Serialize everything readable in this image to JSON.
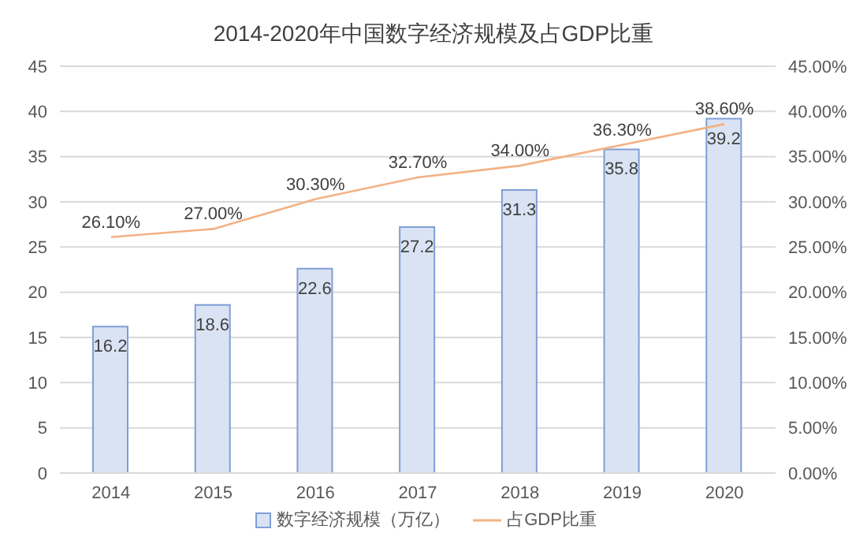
{
  "chart_data": {
    "type": "bar",
    "title": "2014-2020年中国数字经济规模及占GDP比重",
    "categories": [
      "2014",
      "2015",
      "2016",
      "2017",
      "2018",
      "2019",
      "2020"
    ],
    "series": [
      {
        "name": "数字经济规模（万亿）",
        "color": "#dae3f3",
        "values": [
          16.2,
          18.6,
          22.6,
          27.2,
          31.3,
          35.8,
          39.2
        ],
        "value_labels": [
          "16.2",
          "18.6",
          "22.6",
          "27.2",
          "31.3",
          "35.8",
          "39.2"
        ]
      },
      {
        "type": "line",
        "name": "占GDP比重",
        "color": "#f4b183",
        "axis": "y2",
        "values": [
          26.1,
          27.0,
          30.3,
          32.7,
          34.0,
          36.3,
          38.6
        ],
        "value_labels": [
          "26.10%",
          "27.00%",
          "30.30%",
          "32.70%",
          "34.00%",
          "36.30%",
          "38.60%"
        ]
      }
    ],
    "ylim": [
      0,
      45
    ],
    "yticks": [
      0,
      5,
      10,
      15,
      20,
      25,
      30,
      35,
      40,
      45
    ],
    "y2lim": [
      0,
      45
    ],
    "y2ticks": [
      {
        "value": 0,
        "label": "0.00%"
      },
      {
        "value": 5,
        "label": "5.00%"
      },
      {
        "value": 10,
        "label": "10.00%"
      },
      {
        "value": 15,
        "label": "15.00%"
      },
      {
        "value": 20,
        "label": "20.00%"
      },
      {
        "value": 25,
        "label": "25.00%"
      },
      {
        "value": 30,
        "label": "30.00%"
      },
      {
        "value": 35,
        "label": "35.00%"
      },
      {
        "value": 40,
        "label": "40.00%"
      },
      {
        "value": 45,
        "label": "45.00%"
      }
    ],
    "grid": "y",
    "legend": "bottom",
    "marker": "none"
  }
}
